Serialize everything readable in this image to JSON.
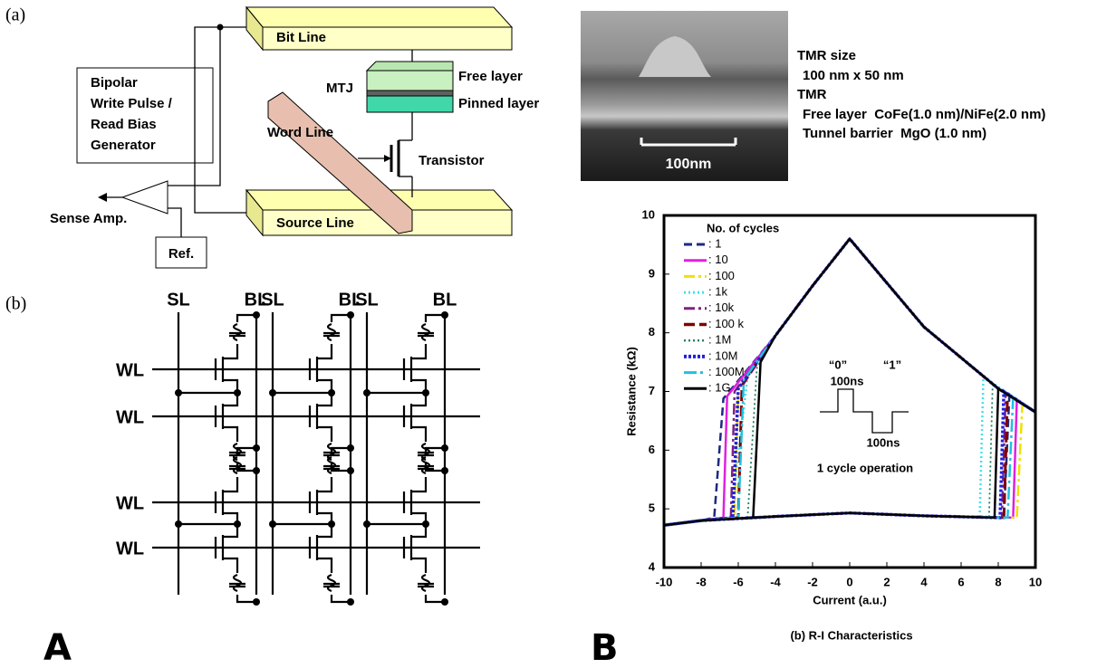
{
  "panel_a": {
    "label": "(a)",
    "bit_line": "Bit Line",
    "mtj": "MTJ",
    "free_layer": "Free layer",
    "pinned_layer": "Pinned layer",
    "generator": [
      "Bipolar",
      "Write Pulse /",
      "Read Bias",
      "Generator"
    ],
    "word_line": "Word Line",
    "transistor": "Transistor",
    "sense_amp": "Sense Amp.",
    "source_line": "Source Line",
    "ref": "Ref."
  },
  "sem": {
    "scale_bar": "100nm",
    "notes": [
      "TMR size",
      "100 nm x 50 nm",
      "TMR",
      "Free layer  CoFe(1.0 nm)/NiFe(2.0 nm)",
      "Tunnel barrier  MgO (1.0 nm)"
    ]
  },
  "panel_b": {
    "label": "(b)",
    "columns": [
      {
        "sl": "SL",
        "bl": "BL"
      },
      {
        "sl": "SL",
        "bl": "BL"
      },
      {
        "sl": "SL",
        "bl": "BL"
      }
    ],
    "rows": [
      "WL",
      "WL",
      "WL",
      "WL"
    ]
  },
  "figure_labels": [
    "A",
    "B"
  ],
  "chart_data": {
    "type": "line",
    "title": "(b) R-I Characteristics",
    "x_label": "Current (a.u.)",
    "y_label": "Resistance (kΩ)",
    "legend_title": "No. of cycles",
    "annotations": [
      "“0”",
      "“1”",
      "100ns",
      "100ns",
      "1 cycle operation"
    ],
    "xlim": [
      -10,
      10
    ],
    "xticks": [
      -10,
      -8,
      -6,
      -4,
      -2,
      0,
      2,
      4,
      6,
      8,
      10
    ],
    "ylim": [
      4,
      10
    ],
    "yticks": [
      4,
      5,
      6,
      7,
      8,
      9,
      10
    ],
    "series": [
      {
        "name": ": 1",
        "color": "#1c2a80",
        "x": [
          -10,
          -8,
          -4,
          0,
          4,
          8.3,
          8.6,
          10,
          8,
          4,
          2,
          0,
          -2,
          -4,
          -6.8,
          -7.3,
          -8,
          -10
        ],
        "values": [
          4.72,
          4.8,
          4.87,
          4.93,
          4.88,
          4.85,
          6.95,
          6.65,
          7.05,
          8.1,
          8.85,
          9.6,
          8.8,
          7.95,
          6.88,
          4.85,
          4.8,
          4.72
        ]
      },
      {
        "name": ": 10",
        "color": "#e020e0",
        "x": [
          -10,
          -8,
          -4,
          0,
          4,
          8.8,
          9.0,
          10,
          8,
          4,
          2,
          0,
          -2,
          -4,
          -6.6,
          -6.8,
          -8,
          -10
        ],
        "values": [
          4.72,
          4.8,
          4.87,
          4.93,
          4.88,
          4.85,
          6.85,
          6.65,
          7.05,
          8.1,
          8.85,
          9.6,
          8.8,
          7.95,
          6.92,
          4.85,
          4.8,
          4.72
        ]
      },
      {
        "name": ": 100",
        "color": "#f0e000",
        "x": [
          -10,
          -8,
          -4,
          0,
          4,
          9.0,
          9.3,
          10,
          8,
          4,
          2,
          0,
          -2,
          -4,
          -6.0,
          -6.2,
          -8,
          -10
        ],
        "values": [
          4.72,
          4.8,
          4.87,
          4.93,
          4.88,
          4.85,
          6.8,
          6.65,
          7.05,
          8.1,
          8.85,
          9.6,
          8.8,
          7.95,
          7.05,
          4.85,
          4.8,
          4.72
        ]
      },
      {
        "name": ": 1k",
        "color": "#40e0e8",
        "x": [
          -10,
          -8,
          -4,
          0,
          4,
          7.0,
          7.2,
          10,
          8,
          4,
          2,
          0,
          -2,
          -4,
          -5.5,
          -6.4,
          -8,
          -10
        ],
        "values": [
          4.72,
          4.8,
          4.87,
          4.93,
          4.88,
          4.85,
          7.25,
          6.65,
          7.05,
          8.1,
          8.85,
          9.6,
          8.8,
          7.95,
          7.25,
          4.85,
          4.8,
          4.72
        ]
      },
      {
        "name": ": 10k",
        "color": "#802080",
        "x": [
          -10,
          -8,
          -4,
          0,
          4,
          8.2,
          8.4,
          10,
          8,
          4,
          2,
          0,
          -2,
          -4,
          -6.2,
          -6.4,
          -8,
          -10
        ],
        "values": [
          4.72,
          4.8,
          4.87,
          4.93,
          4.88,
          4.85,
          6.98,
          6.65,
          7.05,
          8.1,
          8.85,
          9.6,
          8.8,
          7.95,
          7.0,
          4.85,
          4.8,
          4.72
        ]
      },
      {
        "name": ": 100 k",
        "color": "#800000",
        "x": [
          -10,
          -8,
          -4,
          0,
          4,
          8.3,
          8.5,
          10,
          8,
          4,
          2,
          0,
          -2,
          -4,
          -5.8,
          -6.0,
          -8,
          -10
        ],
        "values": [
          4.72,
          4.8,
          4.87,
          4.93,
          4.88,
          4.85,
          6.95,
          6.65,
          7.05,
          8.1,
          8.85,
          9.6,
          8.8,
          7.95,
          7.1,
          4.85,
          4.8,
          4.72
        ]
      },
      {
        "name": ": 1M",
        "color": "#208060",
        "x": [
          -10,
          -8,
          -4,
          0,
          4,
          7.5,
          7.7,
          10,
          8,
          4,
          2,
          0,
          -2,
          -4,
          -5.0,
          -5.5,
          -8,
          -10
        ],
        "values": [
          4.72,
          4.8,
          4.87,
          4.93,
          4.88,
          4.85,
          7.12,
          6.65,
          7.05,
          8.1,
          8.85,
          9.6,
          8.8,
          7.95,
          7.4,
          4.85,
          4.8,
          4.72
        ]
      },
      {
        "name": ": 10M",
        "color": "#2020e0",
        "x": [
          -10,
          -8,
          -4,
          0,
          4,
          8.1,
          8.3,
          10,
          8,
          4,
          2,
          0,
          -2,
          -4,
          -6.0,
          -6.3,
          -8,
          -10
        ],
        "values": [
          4.72,
          4.8,
          4.87,
          4.93,
          4.88,
          4.85,
          7.0,
          6.65,
          7.05,
          8.1,
          8.85,
          9.6,
          8.8,
          7.95,
          7.05,
          4.85,
          4.8,
          4.72
        ]
      },
      {
        "name": ": 100M",
        "color": "#20c0e0",
        "x": [
          -10,
          -8,
          -4,
          0,
          4,
          8.5,
          8.8,
          10,
          8,
          4,
          2,
          0,
          -2,
          -4,
          -5.7,
          -6.0,
          -8,
          -10
        ],
        "values": [
          4.72,
          4.8,
          4.87,
          4.93,
          4.88,
          4.85,
          6.9,
          6.65,
          7.05,
          8.1,
          8.85,
          9.6,
          8.8,
          7.95,
          7.2,
          4.85,
          4.8,
          4.72
        ]
      },
      {
        "name": ": 1G",
        "color": "#000000",
        "x": [
          -10,
          -8,
          -4,
          0,
          4,
          7.8,
          8.0,
          10,
          8,
          4,
          2,
          0,
          -2,
          -4,
          -4.8,
          -5.2,
          -8,
          -10
        ],
        "values": [
          4.72,
          4.8,
          4.87,
          4.93,
          4.88,
          4.85,
          7.05,
          6.65,
          7.05,
          8.1,
          8.85,
          9.6,
          8.8,
          7.95,
          7.5,
          4.85,
          4.8,
          4.72
        ]
      }
    ]
  }
}
